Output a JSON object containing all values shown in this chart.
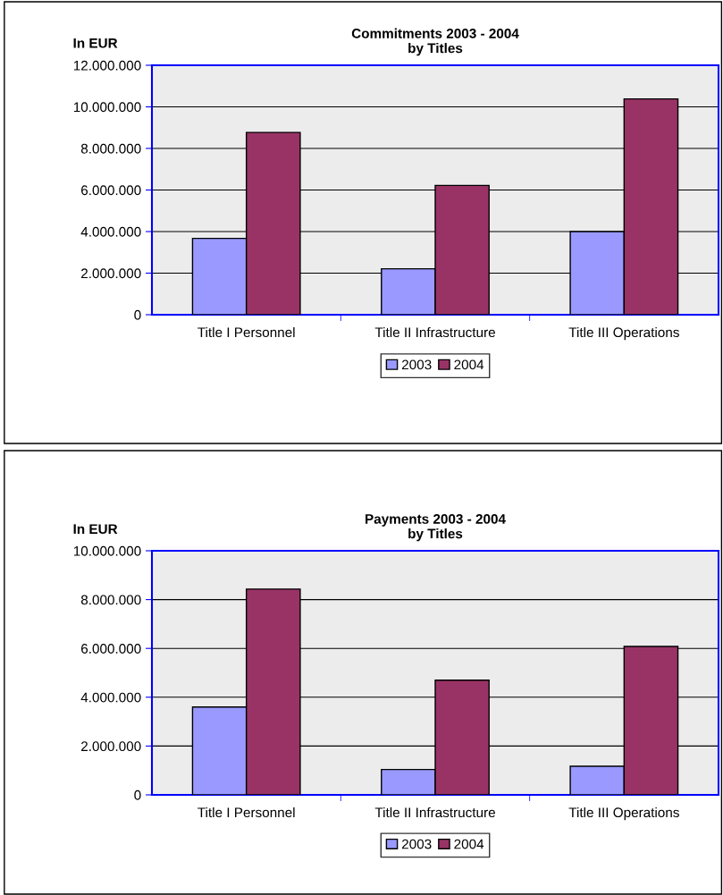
{
  "chart_data": [
    {
      "type": "bar",
      "title": "Commitments 2003 - 2004\nby Titles",
      "ylabel": "In EUR",
      "categories": [
        "Title I Personnel",
        "Title II Infrastructure",
        "Title III Operations"
      ],
      "series": [
        {
          "name": "2003",
          "color": "#9999ff",
          "values": [
            3670000,
            2210000,
            4000000
          ]
        },
        {
          "name": "2004",
          "color": "#993366",
          "values": [
            8770000,
            6220000,
            10380000
          ]
        }
      ],
      "ylim": [
        0,
        12000000
      ],
      "yticks": [
        {
          "value": 0,
          "label": "0"
        },
        {
          "value": 2000000,
          "label": "2.000.000"
        },
        {
          "value": 4000000,
          "label": "4.000.000"
        },
        {
          "value": 6000000,
          "label": "6.000.000"
        },
        {
          "value": 8000000,
          "label": "8.000.000"
        },
        {
          "value": 10000000,
          "label": "10.000.000"
        },
        {
          "value": 12000000,
          "label": "12.000.000"
        }
      ],
      "grid": "y",
      "legend": "bottom"
    },
    {
      "type": "bar",
      "title": "Payments 2003 - 2004\nby Titles",
      "ylabel": "In EUR",
      "categories": [
        "Title I Personnel",
        "Title II Infrastructure",
        "Title III Operations"
      ],
      "series": [
        {
          "name": "2003",
          "color": "#9999ff",
          "values": [
            3600000,
            1040000,
            1170000
          ]
        },
        {
          "name": "2004",
          "color": "#993366",
          "values": [
            8430000,
            4700000,
            6080000
          ]
        }
      ],
      "ylim": [
        0,
        10000000
      ],
      "yticks": [
        {
          "value": 0,
          "label": "0"
        },
        {
          "value": 2000000,
          "label": "2.000.000"
        },
        {
          "value": 4000000,
          "label": "4.000.000"
        },
        {
          "value": 6000000,
          "label": "6.000.000"
        },
        {
          "value": 8000000,
          "label": "8.000.000"
        },
        {
          "value": 10000000,
          "label": "10.000.000"
        }
      ],
      "grid": "y",
      "legend": "bottom"
    }
  ]
}
